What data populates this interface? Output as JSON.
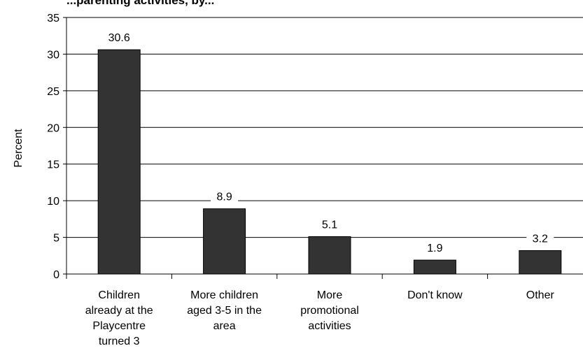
{
  "chart_data": {
    "type": "bar",
    "title": "...parenting activities, by...",
    "ylabel": "Percent",
    "xlabel": "",
    "categories": [
      "Children already at the Playcentre turned 3",
      "More children aged 3-5 in the area",
      "More promotional activities",
      "Don't know",
      "Other"
    ],
    "category_lines": [
      [
        "Children",
        "already at the",
        "Playcentre",
        "turned 3"
      ],
      [
        "More children",
        "aged 3-5 in the",
        "area"
      ],
      [
        "More",
        "promotional",
        "activities"
      ],
      [
        "Don't know"
      ],
      [
        "Other"
      ]
    ],
    "values": [
      30.6,
      8.9,
      5.1,
      1.9,
      3.2
    ],
    "value_labels": [
      "30.6",
      "8.9",
      "5.1",
      "1.9",
      "3.2"
    ],
    "ylim": [
      0,
      35
    ],
    "yticks": [
      0,
      5,
      10,
      15,
      20,
      25,
      30,
      35
    ],
    "grid": true,
    "legend": "none",
    "bar_color": "#333333",
    "grid_color": "#000000"
  }
}
